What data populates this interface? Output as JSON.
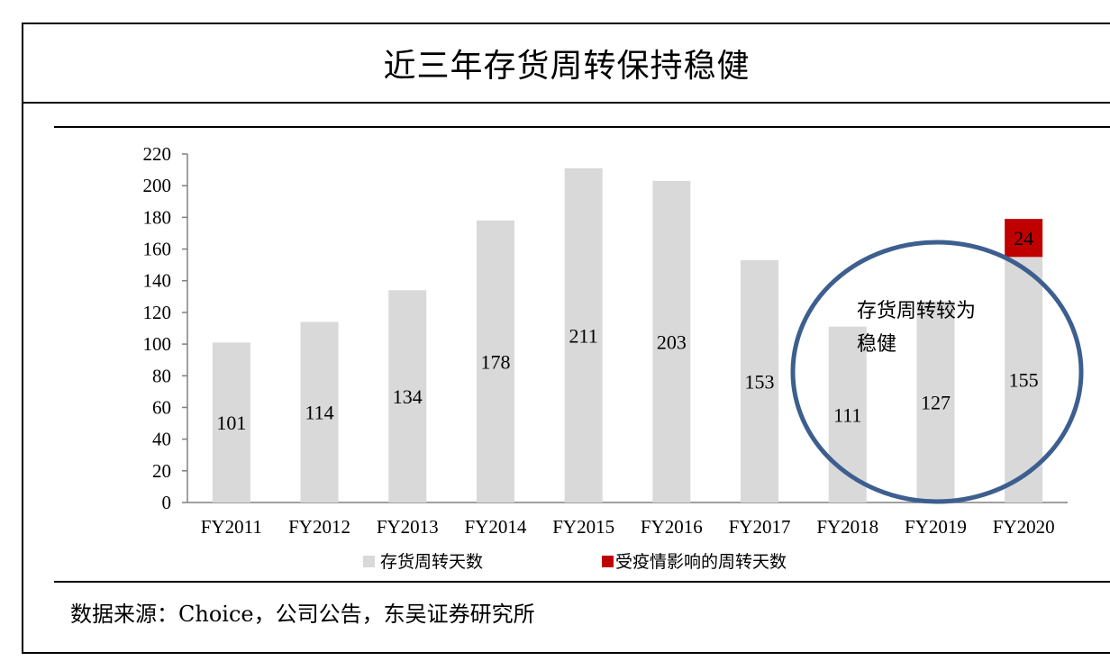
{
  "title": "近三年存货周转保持稳健",
  "source": "数据来源：Choice，公司公告，东吴证券研究所",
  "chart_data": {
    "type": "bar",
    "stacked": true,
    "categories": [
      "FY2011",
      "FY2012",
      "FY2013",
      "FY2014",
      "FY2015",
      "FY2016",
      "FY2017",
      "FY2018",
      "FY2019",
      "FY2020"
    ],
    "series": [
      {
        "name": "存货周转天数",
        "color": "#d9d9d9",
        "values": [
          101,
          114,
          134,
          178,
          211,
          203,
          153,
          111,
          127,
          155
        ]
      },
      {
        "name": "受疫情影响的周转天数",
        "color": "#c00000",
        "values": [
          0,
          0,
          0,
          0,
          0,
          0,
          0,
          0,
          0,
          24
        ]
      }
    ],
    "ylim": [
      0,
      220
    ],
    "yticks": [
      0,
      20,
      40,
      60,
      80,
      100,
      120,
      140,
      160,
      180,
      200,
      220
    ],
    "legend_position": "bottom",
    "annotation": {
      "text_line1": "存货周转较为",
      "text_line2": "稳健",
      "ellipse_color": "#3d5f8f"
    }
  }
}
